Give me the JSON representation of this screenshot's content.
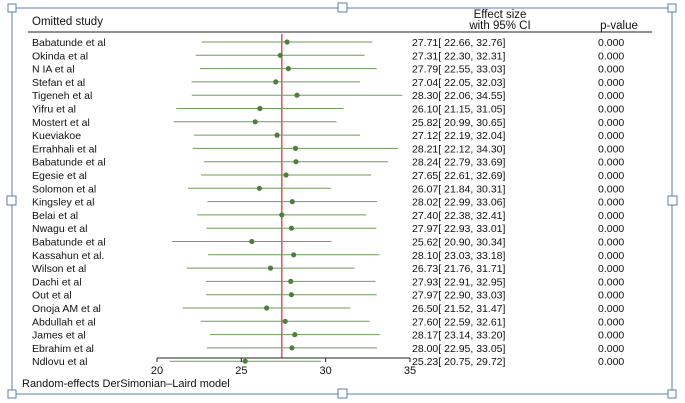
{
  "chart_data": {
    "type": "forest",
    "header": {
      "study": "Omitted study",
      "effect_line1": "Effect size",
      "effect_line2": "with 95% CI",
      "pvalue": "p-value"
    },
    "footer": "Random-effects DerSimonian–Laird model",
    "x_ticks": [
      20,
      25,
      30,
      35
    ],
    "xlim": [
      20,
      35
    ],
    "pooled_estimate": 27.4,
    "colors": {
      "ci_line": "#6f9a5a",
      "point": "#4f7f3c",
      "reference": "#d04040",
      "frame": "#5b7fb0"
    },
    "studies": [
      {
        "name": "Babatunde et al",
        "es": 27.71,
        "lo": 22.66,
        "hi": 32.76,
        "p": "0.000"
      },
      {
        "name": "Okinda et al",
        "es": 27.31,
        "lo": 22.3,
        "hi": 32.31,
        "p": "0.000"
      },
      {
        "name": "N IA et al",
        "es": 27.79,
        "lo": 22.55,
        "hi": 33.03,
        "p": "0.000"
      },
      {
        "name": "Stefan et al",
        "es": 27.04,
        "lo": 22.05,
        "hi": 32.03,
        "p": "0.000"
      },
      {
        "name": "Tigeneh et al",
        "es": 28.3,
        "lo": 22.06,
        "hi": 34.55,
        "p": "0.000"
      },
      {
        "name": "Yifru et al",
        "es": 26.1,
        "lo": 21.15,
        "hi": 31.05,
        "p": "0.000"
      },
      {
        "name": "Mostert et al",
        "es": 25.82,
        "lo": 20.99,
        "hi": 30.65,
        "p": "0.000"
      },
      {
        "name": "Kueviakoe",
        "es": 27.12,
        "lo": 22.19,
        "hi": 32.04,
        "p": "0.000"
      },
      {
        "name": "Errahhali et al",
        "es": 28.21,
        "lo": 22.12,
        "hi": 34.3,
        "p": "0.000"
      },
      {
        "name": "Babatunde et al",
        "es": 28.24,
        "lo": 22.79,
        "hi": 33.69,
        "p": "0.000"
      },
      {
        "name": "Egesie et al",
        "es": 27.65,
        "lo": 22.61,
        "hi": 32.69,
        "p": "0.000"
      },
      {
        "name": "Solomon et al",
        "es": 26.07,
        "lo": 21.84,
        "hi": 30.31,
        "p": "0.000"
      },
      {
        "name": "Kingsley et al",
        "es": 28.02,
        "lo": 22.99,
        "hi": 33.06,
        "p": "0.000"
      },
      {
        "name": "Belai et al",
        "es": 27.4,
        "lo": 22.38,
        "hi": 32.41,
        "p": "0.000"
      },
      {
        "name": "Nwagu et al",
        "es": 27.97,
        "lo": 22.93,
        "hi": 33.01,
        "p": "0.000"
      },
      {
        "name": "Babatunde et al",
        "es": 25.62,
        "lo": 20.9,
        "hi": 30.34,
        "p": "0.000"
      },
      {
        "name": "Kassahun et al.",
        "es": 28.1,
        "lo": 23.03,
        "hi": 33.18,
        "p": "0.000"
      },
      {
        "name": "Wilson et al",
        "es": 26.73,
        "lo": 21.76,
        "hi": 31.71,
        "p": "0.000"
      },
      {
        "name": "Dachi et al",
        "es": 27.93,
        "lo": 22.91,
        "hi": 32.95,
        "p": "0.000"
      },
      {
        "name": "Out et al",
        "es": 27.97,
        "lo": 22.9,
        "hi": 33.03,
        "p": "0.000"
      },
      {
        "name": "Onoja AM et al",
        "es": 26.5,
        "lo": 21.52,
        "hi": 31.47,
        "p": "0.000"
      },
      {
        "name": "Abdullah et al",
        "es": 27.6,
        "lo": 22.59,
        "hi": 32.61,
        "p": "0.000"
      },
      {
        "name": "James et al",
        "es": 28.17,
        "lo": 23.14,
        "hi": 33.2,
        "p": "0.000"
      },
      {
        "name": "Ebrahim et al",
        "es": 28.0,
        "lo": 22.95,
        "hi": 33.05,
        "p": "0.000"
      },
      {
        "name": "Ndlovu et al",
        "es": 25.23,
        "lo": 20.75,
        "hi": 29.72,
        "p": "0.000"
      }
    ]
  }
}
